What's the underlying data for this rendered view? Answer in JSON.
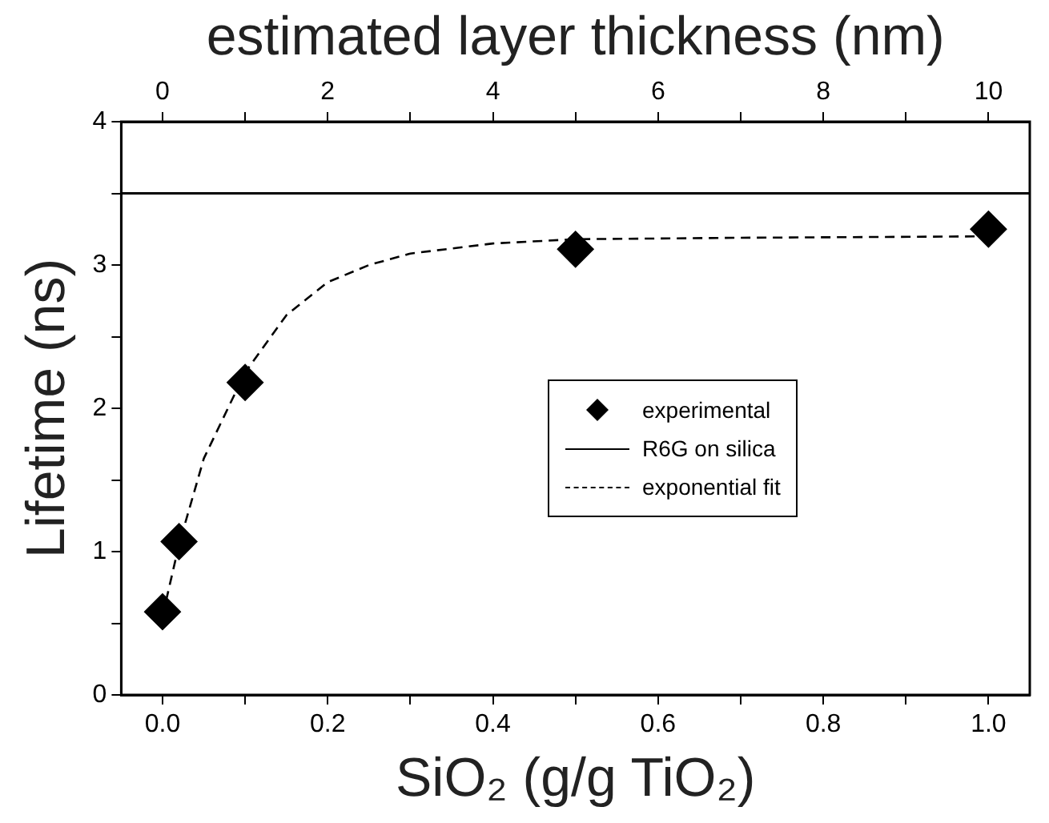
{
  "chart_data": {
    "type": "scatter",
    "xlabel": "SiO₂ (g/g TiO₂)",
    "ylabel": "Lifetime (ns)",
    "x2label": "estimated layer thickness (nm)",
    "xlim": [
      -0.05,
      1.05
    ],
    "xticks": [
      {
        "value": 0,
        "label": "0.0"
      },
      {
        "value": 0.1,
        "label": null
      },
      {
        "value": 0.2,
        "label": "0.2"
      },
      {
        "value": 0.3,
        "label": null
      },
      {
        "value": 0.4,
        "label": "0.4"
      },
      {
        "value": 0.5,
        "label": null
      },
      {
        "value": 0.6,
        "label": "0.6"
      },
      {
        "value": 0.7,
        "label": null
      },
      {
        "value": 0.8,
        "label": "0.8"
      },
      {
        "value": 0.9,
        "label": null
      },
      {
        "value": 1,
        "label": "1.0"
      }
    ],
    "x2lim": [
      -0.5,
      10.5
    ],
    "x2ticks": [
      0,
      {
        "value": 1,
        "label": null
      },
      2,
      {
        "value": 3,
        "label": null
      },
      4,
      {
        "value": 5,
        "label": null
      },
      6,
      {
        "value": 7,
        "label": null
      },
      8,
      {
        "value": 9,
        "label": null
      },
      10
    ],
    "ylim": [
      0,
      4
    ],
    "yticks": [
      0,
      {
        "value": 0.5,
        "label": null
      },
      1,
      {
        "value": 1.5,
        "label": null
      },
      2,
      {
        "value": 2.5,
        "label": null
      },
      3,
      {
        "value": 3.5,
        "label": null
      },
      4
    ],
    "series": [
      {
        "name": "experimental",
        "type": "scatter",
        "color": "#000000",
        "marker": "diamond",
        "x": [
          0,
          0.02,
          0.1,
          0.5,
          1.0
        ],
        "values": [
          0.58,
          1.07,
          2.18,
          3.11,
          3.25
        ]
      },
      {
        "name": "exponential fit",
        "type": "line",
        "color": "#000000",
        "line_style": "dashed",
        "marker": "none",
        "x": [
          0,
          0.02,
          0.05,
          0.1,
          0.15,
          0.2,
          0.25,
          0.3,
          0.4,
          0.5,
          0.7,
          1.0
        ],
        "values": [
          0.55,
          1.05,
          1.65,
          2.25,
          2.65,
          2.88,
          3.0,
          3.08,
          3.15,
          3.18,
          3.19,
          3.2
        ]
      }
    ],
    "ref_lines": [
      {
        "axis": "y",
        "value": 3.5,
        "label": "R6G on silica",
        "color": "#000000",
        "line_style": "solid"
      }
    ],
    "legend": "center",
    "grid": false
  }
}
